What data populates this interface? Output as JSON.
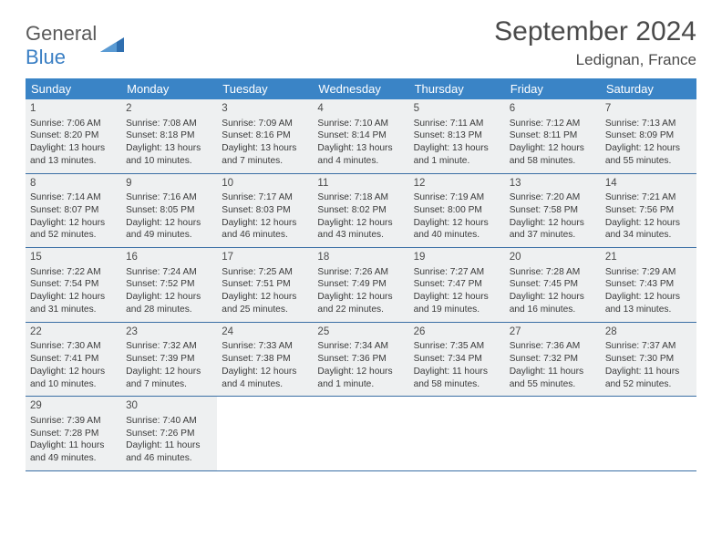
{
  "logo": {
    "text1": "General",
    "text2": "Blue"
  },
  "title": "September 2024",
  "location": "Ledignan, France",
  "weekdays": [
    "Sunday",
    "Monday",
    "Tuesday",
    "Wednesday",
    "Thursday",
    "Friday",
    "Saturday"
  ],
  "colors": {
    "header_bg": "#3a84c6",
    "header_text": "#ffffff",
    "cell_bg": "#eef0f1",
    "row_border": "#3a6fa5",
    "title_color": "#4a4a4a",
    "body_text": "#3a3a3a",
    "logo_gray": "#5a5a5a",
    "logo_blue": "#3a7fc4"
  },
  "layout": {
    "cols": 7,
    "rows": 5,
    "cell_fontsize": 10.2,
    "daynum_fontsize": 11.5
  },
  "days": [
    {
      "n": "1",
      "sunrise": "Sunrise: 7:06 AM",
      "sunset": "Sunset: 8:20 PM",
      "d1": "Daylight: 13 hours",
      "d2": "and 13 minutes."
    },
    {
      "n": "2",
      "sunrise": "Sunrise: 7:08 AM",
      "sunset": "Sunset: 8:18 PM",
      "d1": "Daylight: 13 hours",
      "d2": "and 10 minutes."
    },
    {
      "n": "3",
      "sunrise": "Sunrise: 7:09 AM",
      "sunset": "Sunset: 8:16 PM",
      "d1": "Daylight: 13 hours",
      "d2": "and 7 minutes."
    },
    {
      "n": "4",
      "sunrise": "Sunrise: 7:10 AM",
      "sunset": "Sunset: 8:14 PM",
      "d1": "Daylight: 13 hours",
      "d2": "and 4 minutes."
    },
    {
      "n": "5",
      "sunrise": "Sunrise: 7:11 AM",
      "sunset": "Sunset: 8:13 PM",
      "d1": "Daylight: 13 hours",
      "d2": "and 1 minute."
    },
    {
      "n": "6",
      "sunrise": "Sunrise: 7:12 AM",
      "sunset": "Sunset: 8:11 PM",
      "d1": "Daylight: 12 hours",
      "d2": "and 58 minutes."
    },
    {
      "n": "7",
      "sunrise": "Sunrise: 7:13 AM",
      "sunset": "Sunset: 8:09 PM",
      "d1": "Daylight: 12 hours",
      "d2": "and 55 minutes."
    },
    {
      "n": "8",
      "sunrise": "Sunrise: 7:14 AM",
      "sunset": "Sunset: 8:07 PM",
      "d1": "Daylight: 12 hours",
      "d2": "and 52 minutes."
    },
    {
      "n": "9",
      "sunrise": "Sunrise: 7:16 AM",
      "sunset": "Sunset: 8:05 PM",
      "d1": "Daylight: 12 hours",
      "d2": "and 49 minutes."
    },
    {
      "n": "10",
      "sunrise": "Sunrise: 7:17 AM",
      "sunset": "Sunset: 8:03 PM",
      "d1": "Daylight: 12 hours",
      "d2": "and 46 minutes."
    },
    {
      "n": "11",
      "sunrise": "Sunrise: 7:18 AM",
      "sunset": "Sunset: 8:02 PM",
      "d1": "Daylight: 12 hours",
      "d2": "and 43 minutes."
    },
    {
      "n": "12",
      "sunrise": "Sunrise: 7:19 AM",
      "sunset": "Sunset: 8:00 PM",
      "d1": "Daylight: 12 hours",
      "d2": "and 40 minutes."
    },
    {
      "n": "13",
      "sunrise": "Sunrise: 7:20 AM",
      "sunset": "Sunset: 7:58 PM",
      "d1": "Daylight: 12 hours",
      "d2": "and 37 minutes."
    },
    {
      "n": "14",
      "sunrise": "Sunrise: 7:21 AM",
      "sunset": "Sunset: 7:56 PM",
      "d1": "Daylight: 12 hours",
      "d2": "and 34 minutes."
    },
    {
      "n": "15",
      "sunrise": "Sunrise: 7:22 AM",
      "sunset": "Sunset: 7:54 PM",
      "d1": "Daylight: 12 hours",
      "d2": "and 31 minutes."
    },
    {
      "n": "16",
      "sunrise": "Sunrise: 7:24 AM",
      "sunset": "Sunset: 7:52 PM",
      "d1": "Daylight: 12 hours",
      "d2": "and 28 minutes."
    },
    {
      "n": "17",
      "sunrise": "Sunrise: 7:25 AM",
      "sunset": "Sunset: 7:51 PM",
      "d1": "Daylight: 12 hours",
      "d2": "and 25 minutes."
    },
    {
      "n": "18",
      "sunrise": "Sunrise: 7:26 AM",
      "sunset": "Sunset: 7:49 PM",
      "d1": "Daylight: 12 hours",
      "d2": "and 22 minutes."
    },
    {
      "n": "19",
      "sunrise": "Sunrise: 7:27 AM",
      "sunset": "Sunset: 7:47 PM",
      "d1": "Daylight: 12 hours",
      "d2": "and 19 minutes."
    },
    {
      "n": "20",
      "sunrise": "Sunrise: 7:28 AM",
      "sunset": "Sunset: 7:45 PM",
      "d1": "Daylight: 12 hours",
      "d2": "and 16 minutes."
    },
    {
      "n": "21",
      "sunrise": "Sunrise: 7:29 AM",
      "sunset": "Sunset: 7:43 PM",
      "d1": "Daylight: 12 hours",
      "d2": "and 13 minutes."
    },
    {
      "n": "22",
      "sunrise": "Sunrise: 7:30 AM",
      "sunset": "Sunset: 7:41 PM",
      "d1": "Daylight: 12 hours",
      "d2": "and 10 minutes."
    },
    {
      "n": "23",
      "sunrise": "Sunrise: 7:32 AM",
      "sunset": "Sunset: 7:39 PM",
      "d1": "Daylight: 12 hours",
      "d2": "and 7 minutes."
    },
    {
      "n": "24",
      "sunrise": "Sunrise: 7:33 AM",
      "sunset": "Sunset: 7:38 PM",
      "d1": "Daylight: 12 hours",
      "d2": "and 4 minutes."
    },
    {
      "n": "25",
      "sunrise": "Sunrise: 7:34 AM",
      "sunset": "Sunset: 7:36 PM",
      "d1": "Daylight: 12 hours",
      "d2": "and 1 minute."
    },
    {
      "n": "26",
      "sunrise": "Sunrise: 7:35 AM",
      "sunset": "Sunset: 7:34 PM",
      "d1": "Daylight: 11 hours",
      "d2": "and 58 minutes."
    },
    {
      "n": "27",
      "sunrise": "Sunrise: 7:36 AM",
      "sunset": "Sunset: 7:32 PM",
      "d1": "Daylight: 11 hours",
      "d2": "and 55 minutes."
    },
    {
      "n": "28",
      "sunrise": "Sunrise: 7:37 AM",
      "sunset": "Sunset: 7:30 PM",
      "d1": "Daylight: 11 hours",
      "d2": "and 52 minutes."
    },
    {
      "n": "29",
      "sunrise": "Sunrise: 7:39 AM",
      "sunset": "Sunset: 7:28 PM",
      "d1": "Daylight: 11 hours",
      "d2": "and 49 minutes."
    },
    {
      "n": "30",
      "sunrise": "Sunrise: 7:40 AM",
      "sunset": "Sunset: 7:26 PM",
      "d1": "Daylight: 11 hours",
      "d2": "and 46 minutes."
    }
  ]
}
